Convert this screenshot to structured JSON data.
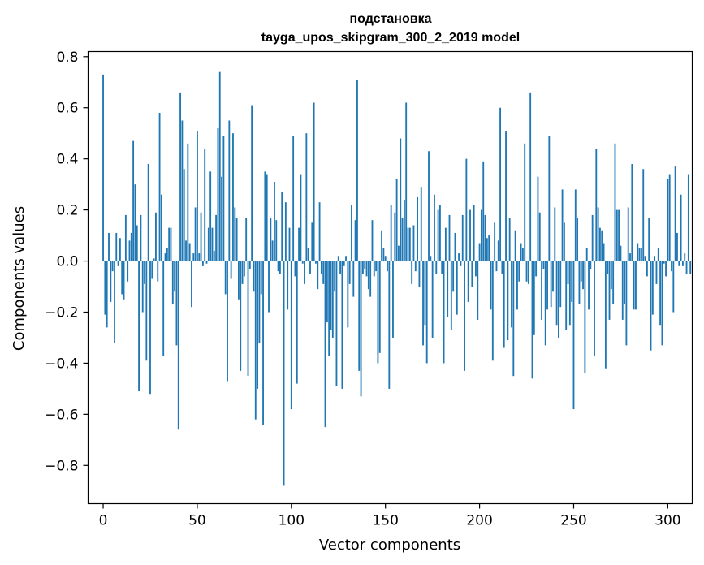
{
  "chart_data": {
    "type": "bar",
    "title_line1": "подстановка",
    "title_line2": "tayga_upos_skipgram_300_2_2019 model",
    "xlabel": "Vector components",
    "ylabel": "Components values",
    "xlim": [
      -8,
      313
    ],
    "ylim": [
      -0.95,
      0.82
    ],
    "xticks": [
      0,
      50,
      100,
      150,
      200,
      250,
      300
    ],
    "xtick_labels": [
      "0",
      "50",
      "100",
      "150",
      "200",
      "250",
      "300"
    ],
    "yticks": [
      -0.8,
      -0.6,
      -0.4,
      -0.2,
      0.0,
      0.2,
      0.4,
      0.6,
      0.8
    ],
    "ytick_labels": [
      "−0.8",
      "−0.6",
      "−0.4",
      "−0.2",
      "0.0",
      "0.2",
      "0.4",
      "0.6",
      "0.8"
    ],
    "bar_color": "#1f77b4",
    "values": [
      0.73,
      -0.21,
      -0.26,
      0.11,
      -0.16,
      -0.04,
      -0.32,
      0.11,
      -0.02,
      0.09,
      -0.13,
      -0.15,
      0.18,
      -0.08,
      0.08,
      0.11,
      0.47,
      0.3,
      0.14,
      -0.51,
      0.18,
      -0.2,
      -0.09,
      -0.39,
      0.38,
      -0.52,
      -0.07,
      0.01,
      0.19,
      -0.08,
      0.58,
      0.26,
      -0.37,
      0.03,
      0.05,
      0.13,
      0.13,
      -0.17,
      -0.12,
      -0.33,
      -0.66,
      0.66,
      0.55,
      0.36,
      0.08,
      0.46,
      0.07,
      -0.18,
      0.03,
      0.21,
      0.51,
      0.03,
      0.19,
      -0.02,
      0.44,
      -0.01,
      0.13,
      0.35,
      0.13,
      0.04,
      0.18,
      0.52,
      0.74,
      0.33,
      0.49,
      -0.13,
      -0.47,
      0.55,
      -0.07,
      0.5,
      0.21,
      0.17,
      -0.15,
      -0.43,
      -0.09,
      -0.06,
      0.17,
      -0.45,
      -0.03,
      0.61,
      -0.12,
      -0.62,
      -0.5,
      -0.32,
      -0.13,
      -0.64,
      0.35,
      0.34,
      -0.2,
      0.17,
      0.08,
      0.31,
      0.16,
      -0.04,
      -0.05,
      0.27,
      -0.88,
      0.23,
      -0.19,
      0.13,
      -0.58,
      0.49,
      -0.06,
      -0.48,
      0.13,
      0.34,
      -0.01,
      -0.09,
      0.5,
      0.05,
      -0.05,
      0.15,
      0.62,
      -0.01,
      -0.11,
      0.23,
      -0.05,
      -0.09,
      -0.65,
      -0.24,
      -0.37,
      -0.27,
      -0.3,
      -0.12,
      -0.49,
      0.02,
      -0.05,
      -0.5,
      -0.02,
      0.02,
      -0.26,
      -0.09,
      0.22,
      -0.14,
      0.16,
      0.71,
      -0.43,
      -0.53,
      -0.05,
      -0.03,
      -0.06,
      -0.11,
      -0.14,
      0.16,
      -0.06,
      -0.04,
      -0.4,
      -0.36,
      0.12,
      0.05,
      0.02,
      -0.04,
      -0.5,
      0.22,
      -0.3,
      0.19,
      0.32,
      0.06,
      0.48,
      0.17,
      0.24,
      0.62,
      0.13,
      0.13,
      -0.09,
      0.14,
      -0.04,
      0.25,
      -0.1,
      0.29,
      -0.33,
      -0.25,
      -0.4,
      0.43,
      0.02,
      -0.3,
      0.26,
      -0.05,
      0.2,
      0.22,
      -0.05,
      -0.4,
      0.13,
      -0.22,
      0.18,
      -0.27,
      -0.12,
      0.11,
      -0.21,
      0.03,
      -0.02,
      0.18,
      -0.43,
      0.4,
      -0.16,
      0.2,
      -0.1,
      0.22,
      -0.06,
      -0.23,
      0.07,
      0.2,
      0.39,
      0.18,
      0.09,
      0.1,
      -0.19,
      -0.39,
      0.15,
      -0.04,
      0.08,
      0.6,
      -0.05,
      -0.34,
      0.51,
      -0.31,
      0.17,
      -0.26,
      -0.45,
      0.12,
      -0.19,
      -0.08,
      0.07,
      0.05,
      0.46,
      -0.08,
      -0.09,
      0.66,
      -0.46,
      -0.29,
      -0.06,
      0.33,
      0.19,
      -0.23,
      -0.03,
      -0.33,
      -0.19,
      0.49,
      -0.18,
      -0.12,
      0.21,
      -0.25,
      -0.3,
      -0.18,
      0.28,
      0.15,
      -0.27,
      -0.09,
      -0.25,
      -0.16,
      -0.58,
      0.28,
      0.17,
      -0.17,
      -0.08,
      -0.11,
      -0.44,
      0.05,
      -0.19,
      -0.03,
      0.18,
      -0.37,
      0.44,
      0.21,
      0.13,
      0.12,
      0.07,
      -0.42,
      -0.05,
      -0.23,
      -0.11,
      -0.17,
      0.46,
      0.2,
      0.2,
      0.06,
      -0.23,
      -0.17,
      -0.33,
      0.21,
      0.03,
      0.38,
      -0.19,
      -0.19,
      0.07,
      0.05,
      0.05,
      0.36,
      0.02,
      -0.06,
      0.17,
      -0.35,
      -0.21,
      0.02,
      -0.09,
      0.05,
      -0.25,
      -0.33,
      -0.01,
      -0.06,
      0.32,
      0.34,
      -0.04,
      -0.2,
      0.37,
      0.11,
      -0.02,
      0.26,
      -0.02,
      0.03,
      -0.05,
      0.34,
      -0.05
    ]
  }
}
